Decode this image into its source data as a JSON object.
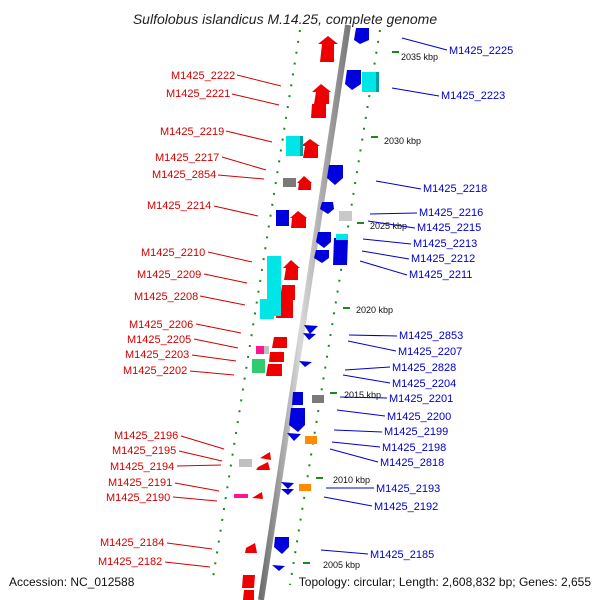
{
  "title": "Sulfolobus islandicus M.14.25, complete genome",
  "footer": {
    "accession": "Accession: NC_012588",
    "summary": "Topology: circular; Length: 2,608,832 bp; Genes: 2,655"
  },
  "kbp_labels": [
    "2035 kbp",
    "2030 kbp",
    "2025 kbp",
    "2020 kbp",
    "2015 kbp",
    "2010 kbp",
    "2005 kbp"
  ],
  "left_genes": [
    "M1425_2222",
    "M1425_2221",
    "M1425_2219",
    "M1425_2217",
    "M1425_2854",
    "M1425_2214",
    "M1425_2210",
    "M1425_2209",
    "M1425_2208",
    "M1425_2206",
    "M1425_2205",
    "M1425_2203",
    "M1425_2202",
    "M1425_2196",
    "M1425_2195",
    "M1425_2194",
    "M1425_2191",
    "M1425_2190",
    "M1425_2184",
    "M1425_2182"
  ],
  "right_genes": [
    "M1425_2225",
    "M1425_2223",
    "M1425_2218",
    "M1425_2216",
    "M1425_2215",
    "M1425_2213",
    "M1425_2212",
    "M1425_2211",
    "M1425_2853",
    "M1425_2207",
    "M1425_2828",
    "M1425_2204",
    "M1425_2201",
    "M1425_2200",
    "M1425_2199",
    "M1425_2198",
    "M1425_2818",
    "M1425_2193",
    "M1425_2192",
    "M1425_2185"
  ],
  "colors": {
    "forward_cds": "#ee0000",
    "reverse_cds": "#0000dd",
    "rna": "#00e5e5",
    "pseudo": "#909090",
    "other_pink": "#ff1493",
    "other_orange": "#ff8c00",
    "other_green": "#2ecc71",
    "tick_green": "#1b8a1b",
    "backbone": "#9a9a9a"
  }
}
